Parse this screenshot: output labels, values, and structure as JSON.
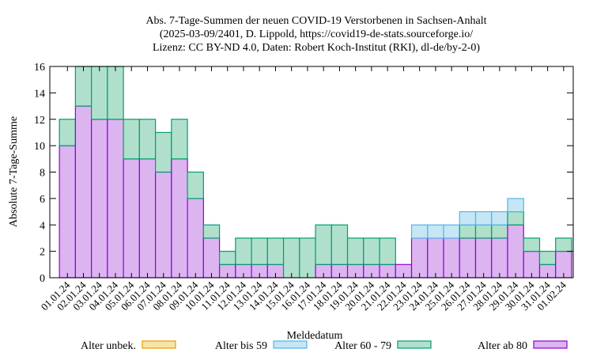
{
  "chart_data": {
    "type": "bar",
    "stacked": true,
    "title_lines": [
      "Abs. 7-Tage-Summen der neuen COVID-19 Verstorbenen in Sachsen-Anhalt",
      "(2025-03-09/2401, D. Lippold, https://covid19-de-stats.sourceforge.io/",
      "Lizenz: CC BY-ND 4.0, Daten: Robert Koch-Institut (RKI), dl-de/by-2-0)"
    ],
    "xlabel": "Meldedatum",
    "ylabel": "Absolute 7-Tage-Summe",
    "ylim": [
      0,
      16
    ],
    "yticks": [
      0,
      2,
      4,
      6,
      8,
      10,
      12,
      14,
      16
    ],
    "categories": [
      "01.01.24",
      "02.01.24",
      "03.01.24",
      "04.01.24",
      "05.01.24",
      "06.01.24",
      "07.01.24",
      "08.01.24",
      "09.01.24",
      "10.01.24",
      "11.01.24",
      "12.01.24",
      "13.01.24",
      "14.01.24",
      "15.01.24",
      "16.01.24",
      "17.01.24",
      "18.01.24",
      "19.01.24",
      "20.01.24",
      "21.01.24",
      "22.01.24",
      "23.01.24",
      "24.01.24",
      "25.01.24",
      "26.01.24",
      "27.01.24",
      "28.01.24",
      "29.01.24",
      "30.01.24",
      "31.01.24",
      "01.02.24"
    ],
    "series": [
      {
        "name": "Alter ab 80",
        "fill": "#dcb4f0",
        "stroke": "#9400d3",
        "values": [
          10,
          13,
          12,
          12,
          9,
          9,
          8,
          9,
          6,
          3,
          1,
          1,
          1,
          1,
          0,
          0,
          1,
          1,
          1,
          1,
          1,
          1,
          3,
          3,
          3,
          3,
          3,
          3,
          4,
          2,
          1,
          2
        ]
      },
      {
        "name": "Alter 60 - 79",
        "fill": "#b0e0cc",
        "stroke": "#009e73",
        "values": [
          2,
          3,
          4,
          4,
          3,
          3,
          3,
          3,
          2,
          1,
          1,
          2,
          2,
          2,
          3,
          3,
          3,
          3,
          2,
          2,
          2,
          0,
          0,
          0,
          0,
          1,
          1,
          1,
          1,
          1,
          1,
          1
        ]
      },
      {
        "name": "Alter bis 59",
        "fill": "#c6e6f6",
        "stroke": "#56b4e9",
        "values": [
          0,
          0,
          0,
          0,
          0,
          0,
          0,
          0,
          0,
          0,
          0,
          0,
          0,
          0,
          0,
          0,
          0,
          0,
          0,
          0,
          0,
          0,
          1,
          1,
          1,
          1,
          1,
          1,
          1,
          0,
          0,
          0
        ]
      },
      {
        "name": "Alter unbek.",
        "fill": "#f9e3a8",
        "stroke": "#e69f00",
        "values": [
          0,
          0,
          0,
          0,
          0,
          0,
          0,
          0,
          0,
          0,
          0,
          0,
          0,
          0,
          0,
          0,
          0,
          0,
          0,
          0,
          0,
          0,
          0,
          0,
          0,
          0,
          0,
          0,
          0,
          0,
          0,
          0
        ]
      }
    ],
    "legend_order": [
      "Alter unbek.",
      "Alter bis 59",
      "Alter 60 - 79",
      "Alter ab 80"
    ],
    "legend_placement": "bottom",
    "grid": false
  }
}
